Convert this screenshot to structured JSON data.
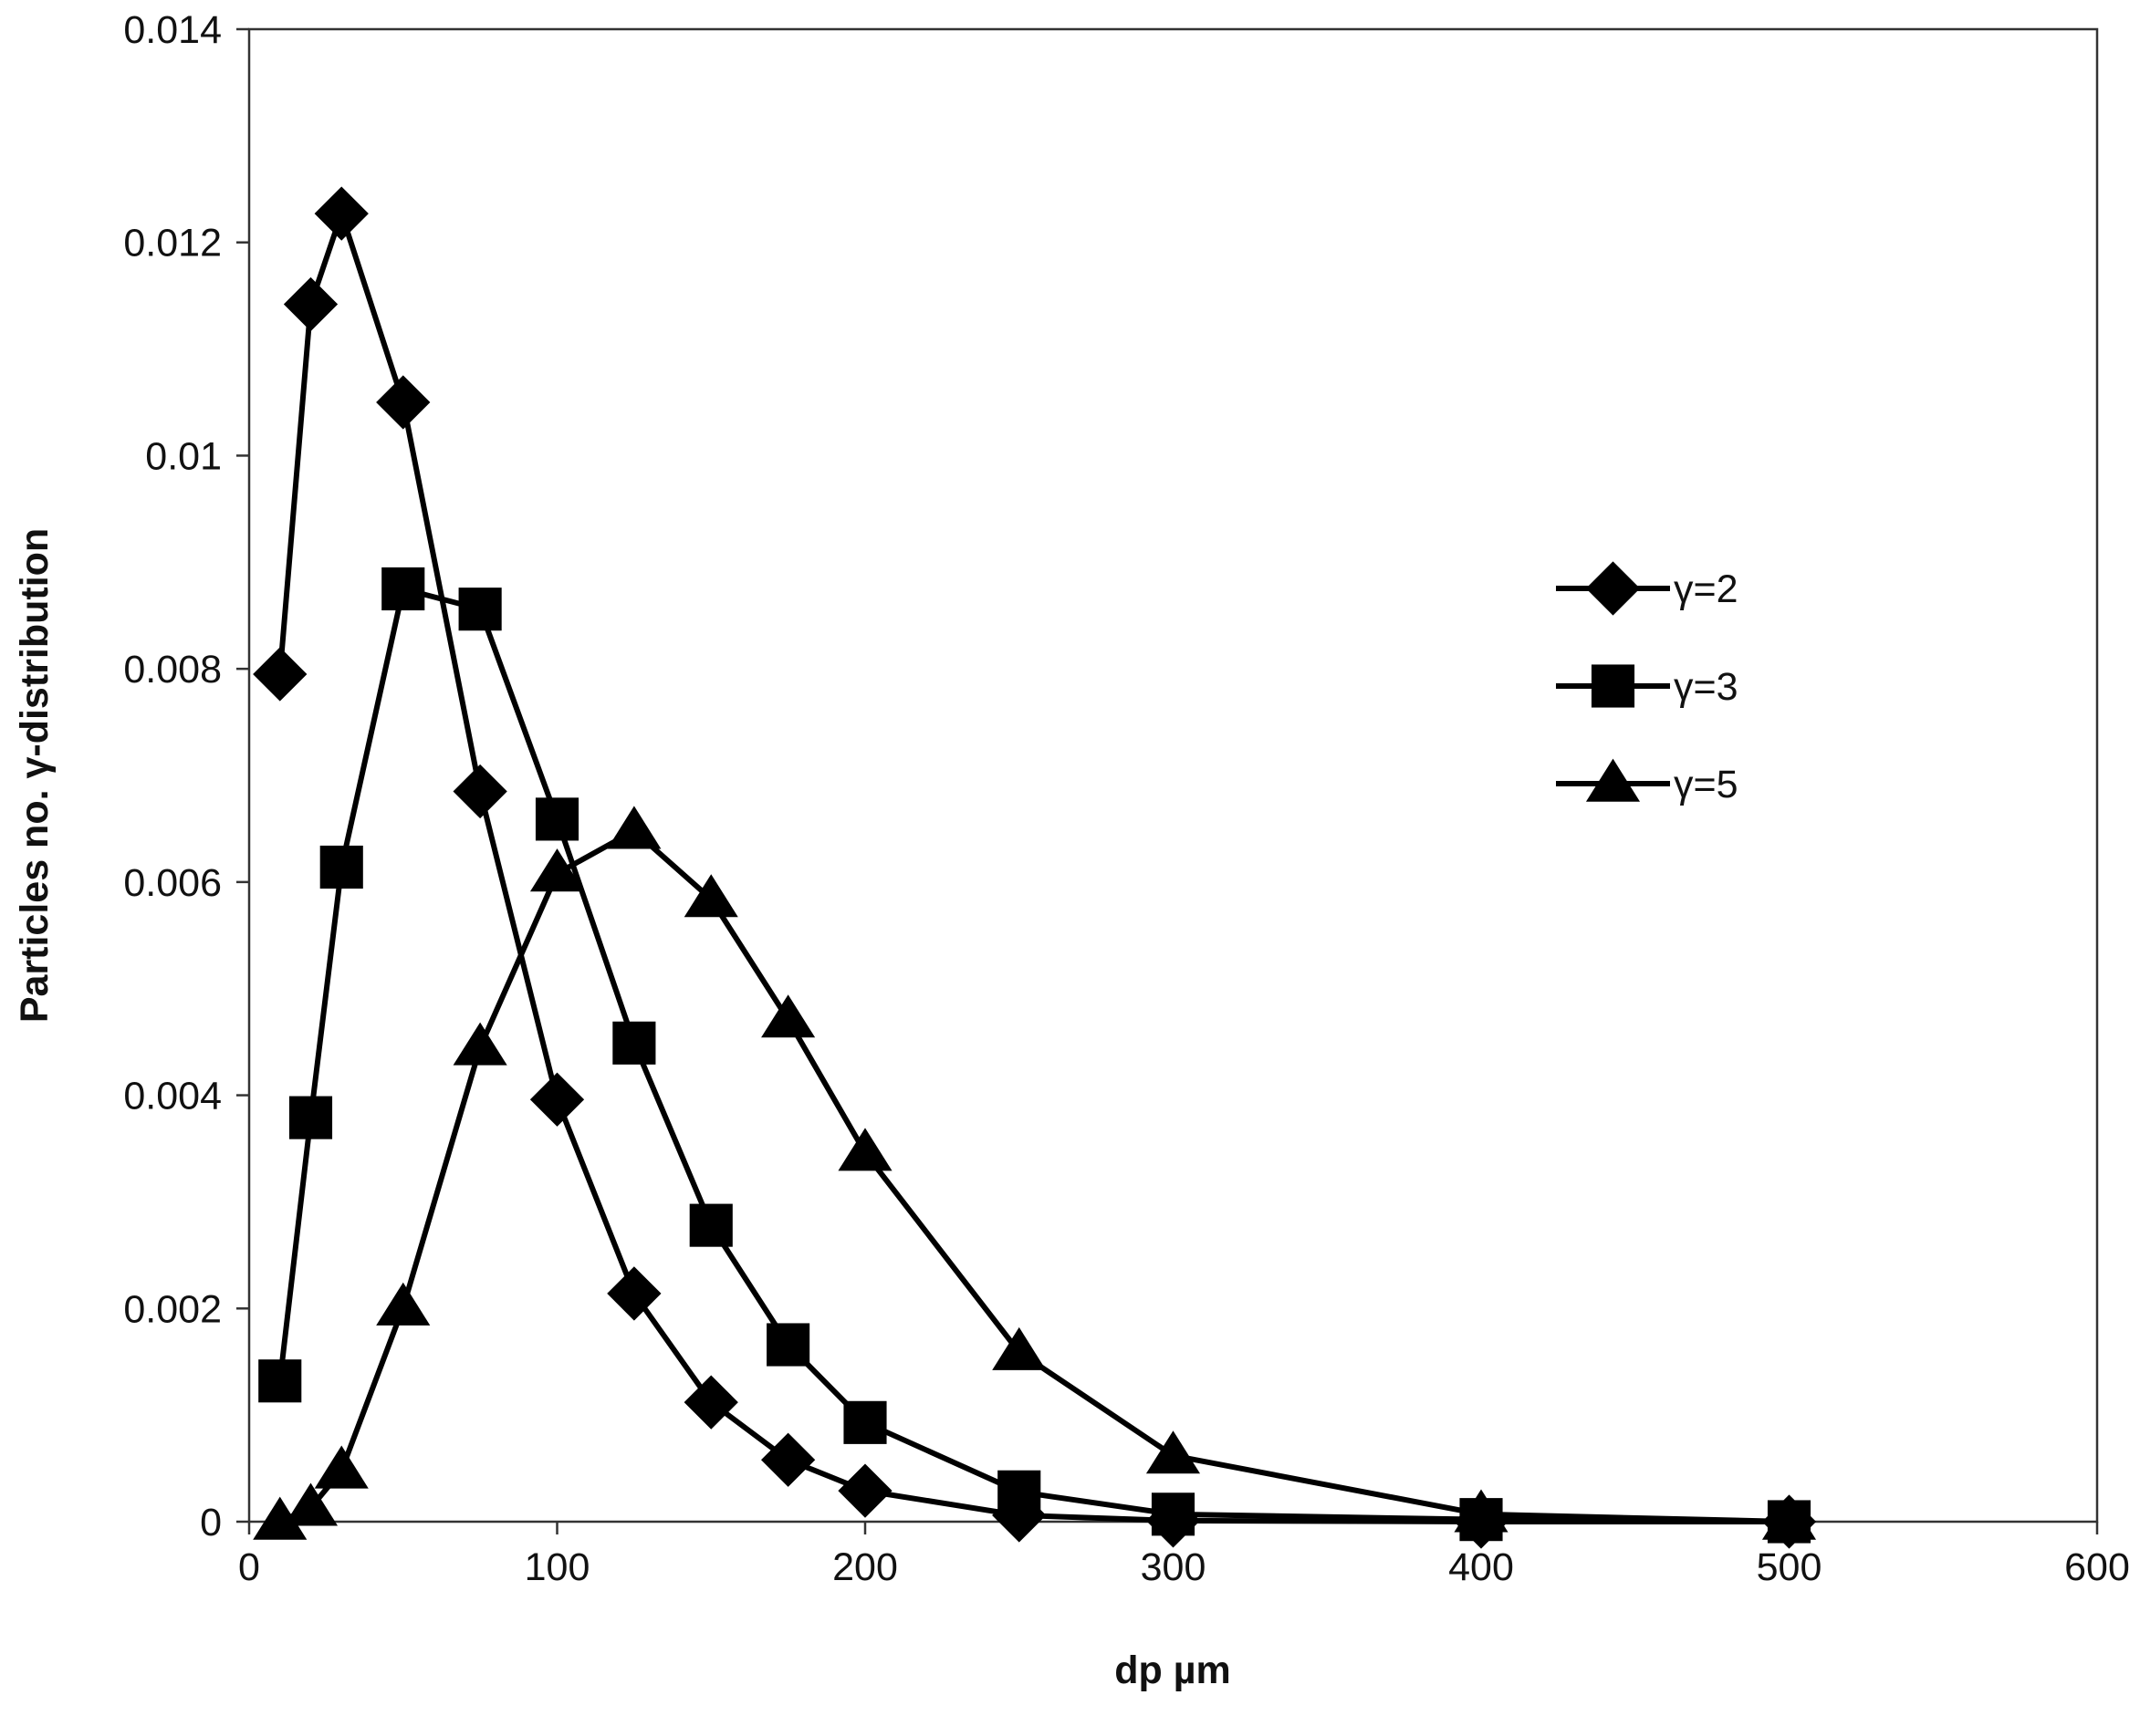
{
  "chart_data": {
    "type": "line",
    "title": "",
    "xlabel": "dp µm",
    "ylabel": "Particles no. γ-distribution",
    "xlim": [
      0,
      600
    ],
    "ylim": [
      0,
      0.014
    ],
    "x_ticks": [
      0,
      100,
      200,
      300,
      400,
      500,
      600
    ],
    "y_ticks": [
      0,
      0.002,
      0.004,
      0.006,
      0.008,
      0.01,
      0.012,
      0.014
    ],
    "x_tick_labels": [
      "0",
      "100",
      "200",
      "300",
      "400",
      "500",
      "600"
    ],
    "y_tick_labels": [
      "0",
      "0.002",
      "0.004",
      "0.006",
      "0.008",
      "0.01",
      "0.012",
      "0.014"
    ],
    "grid": false,
    "legend_position": "right",
    "series": [
      {
        "name": "γ=2",
        "marker": "diamond",
        "color": "#000000",
        "x": [
          10,
          20,
          30,
          50,
          75,
          100,
          125,
          150,
          175,
          200,
          250,
          300,
          400,
          500
        ],
        "y": [
          0.00795,
          0.01142,
          0.01227,
          0.0105,
          0.00685,
          0.00396,
          0.00214,
          0.00112,
          0.00058,
          0.00029,
          6e-05,
          1e-05,
          0.0,
          0.0
        ]
      },
      {
        "name": "γ=3",
        "marker": "square",
        "color": "#000000",
        "x": [
          10,
          20,
          30,
          50,
          75,
          100,
          125,
          150,
          175,
          200,
          250,
          300,
          400,
          500
        ],
        "y": [
          0.00132,
          0.00379,
          0.00614,
          0.00875,
          0.00856,
          0.00659,
          0.00449,
          0.00278,
          0.00166,
          0.00093,
          0.00028,
          7e-05,
          2e-05,
          0.0
        ]
      },
      {
        "name": "γ=5",
        "marker": "triangle",
        "color": "#000000",
        "x": [
          10,
          20,
          30,
          50,
          75,
          100,
          125,
          150,
          175,
          200,
          250,
          300,
          400,
          500
        ],
        "y": [
          0.0,
          0.00013,
          0.00048,
          0.00201,
          0.00445,
          0.00608,
          0.00648,
          0.00584,
          0.00471,
          0.00346,
          0.00159,
          0.00062,
          7e-05,
          0.0
        ]
      }
    ]
  }
}
